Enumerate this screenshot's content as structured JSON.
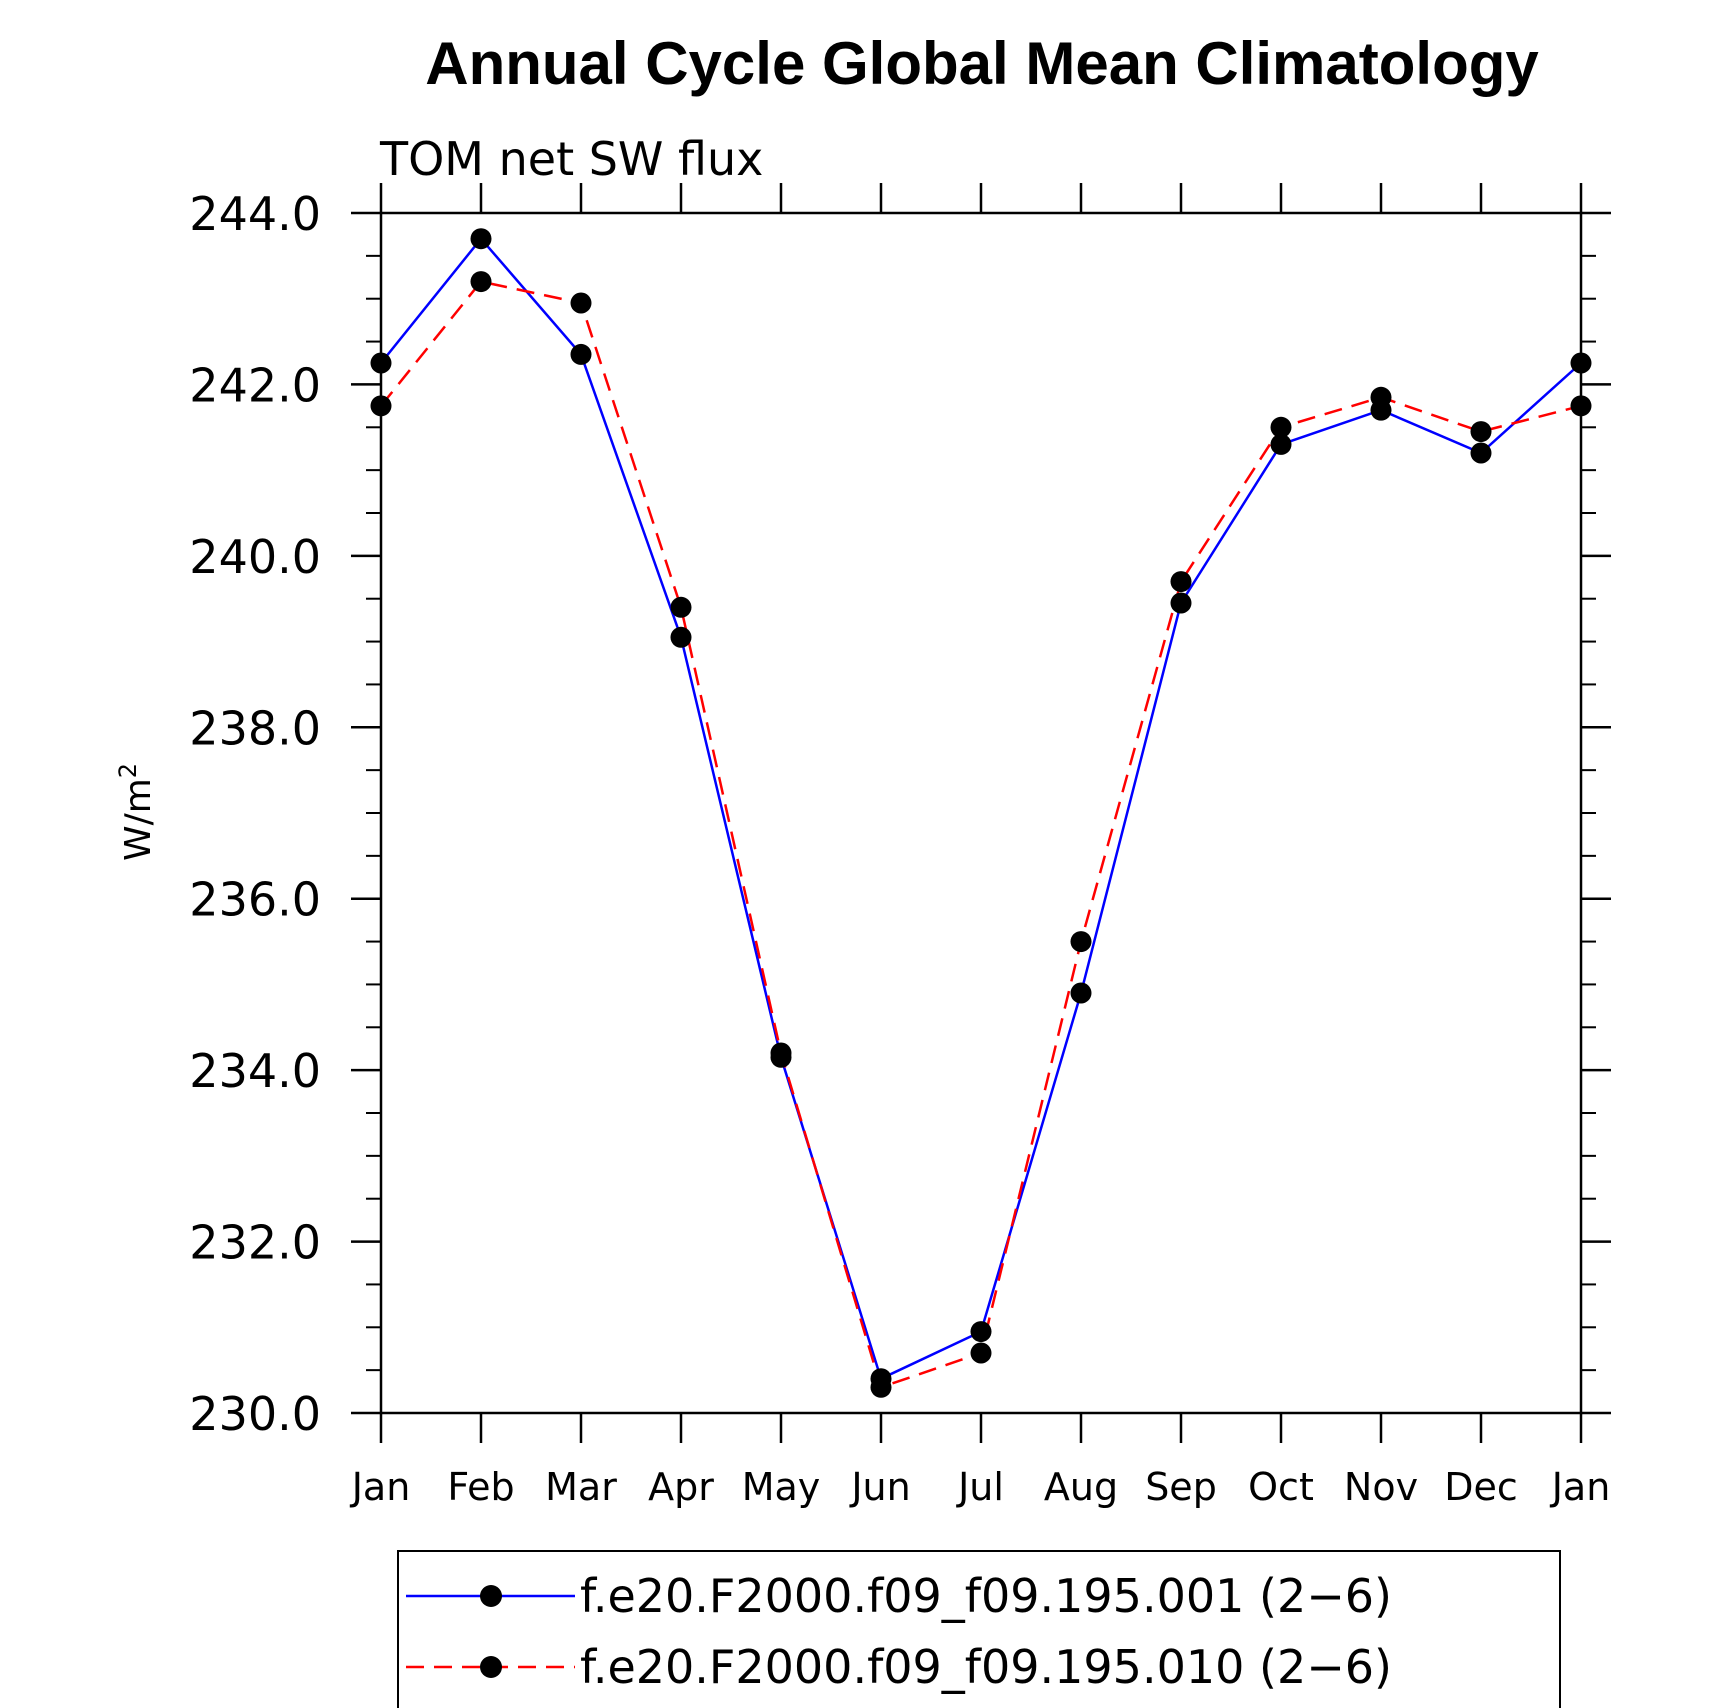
{
  "chart_data": {
    "type": "line",
    "title": "Annual Cycle Global Mean Climatology",
    "subtitle": "TOM net SW flux",
    "ylabel_base": "W/m",
    "ylabel_sup": "2",
    "categories": [
      "Jan",
      "Feb",
      "Mar",
      "Apr",
      "May",
      "Jun",
      "Jul",
      "Aug",
      "Sep",
      "Oct",
      "Nov",
      "Dec",
      "Jan"
    ],
    "ylim": [
      230.0,
      244.0
    ],
    "yticks": [
      "230.0",
      "232.0",
      "234.0",
      "236.0",
      "238.0",
      "240.0",
      "242.0",
      "244.0"
    ],
    "series": [
      {
        "name": "f.e20.F2000.f09_f09.195.001 (2−6)",
        "color": "#0000ff",
        "dash": "solid",
        "values": [
          242.25,
          243.7,
          242.35,
          239.05,
          234.15,
          230.4,
          230.95,
          234.9,
          239.45,
          241.3,
          241.7,
          241.2,
          242.25
        ]
      },
      {
        "name": "f.e20.F2000.f09_f09.195.010 (2−6)",
        "color": "#ff0000",
        "dash": "dashed",
        "values": [
          241.75,
          243.2,
          242.95,
          239.4,
          234.2,
          230.3,
          230.7,
          235.5,
          239.7,
          241.5,
          241.85,
          241.45,
          241.75
        ]
      }
    ],
    "marker_color": "#000000",
    "grid": false,
    "legend_position": "bottom"
  }
}
